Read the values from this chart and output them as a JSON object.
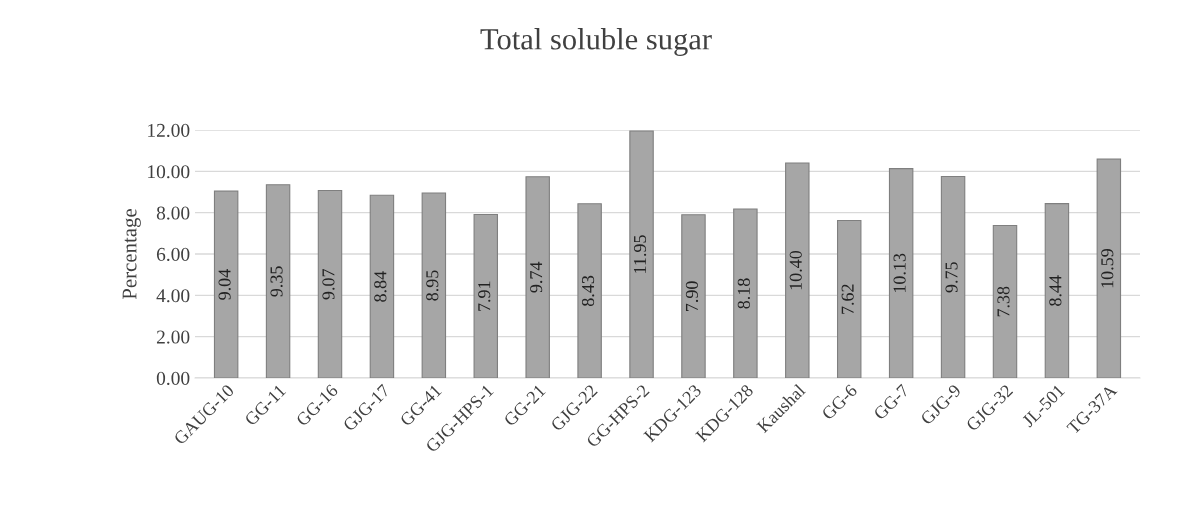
{
  "chart_data": {
    "type": "bar",
    "title": "Total soluble sugar",
    "ylabel": "Percentage",
    "categories": [
      "GAUG-10",
      "GG-11",
      "GG-16",
      "GJG-17",
      "GG-41",
      "GJG-HPS-1",
      "GG-21",
      "GJG-22",
      "GG-HPS-2",
      "KDG-123",
      "KDG-128",
      "Kaushal",
      "GG-6",
      "GG-7",
      "GJG-9",
      "GJG-32",
      "JL-501",
      "TG-37A"
    ],
    "values": [
      9.04,
      9.35,
      9.07,
      8.84,
      8.95,
      7.91,
      9.74,
      8.43,
      11.95,
      7.9,
      8.18,
      10.4,
      7.62,
      10.13,
      9.75,
      7.38,
      8.44,
      10.59
    ],
    "value_labels": [
      "9.04",
      "9.35",
      "9.07",
      "8.84",
      "8.95",
      "7.91",
      "9.74",
      "8.43",
      "11.95",
      "7.90",
      "8.18",
      "10.40",
      "7.62",
      "10.13",
      "9.75",
      "7.38",
      "8.44",
      "10.59"
    ],
    "color": "#a6a6a6",
    "ylim": [
      0,
      12
    ],
    "yticks": [
      {
        "value": 0,
        "label": "0.00"
      },
      {
        "value": 2,
        "label": "2.00"
      },
      {
        "value": 4,
        "label": "4.00"
      },
      {
        "value": 6,
        "label": "6.00"
      },
      {
        "value": 8,
        "label": "8.00"
      },
      {
        "value": 10,
        "label": "10.00"
      },
      {
        "value": 12,
        "label": "12.00"
      }
    ],
    "grid": "y"
  }
}
